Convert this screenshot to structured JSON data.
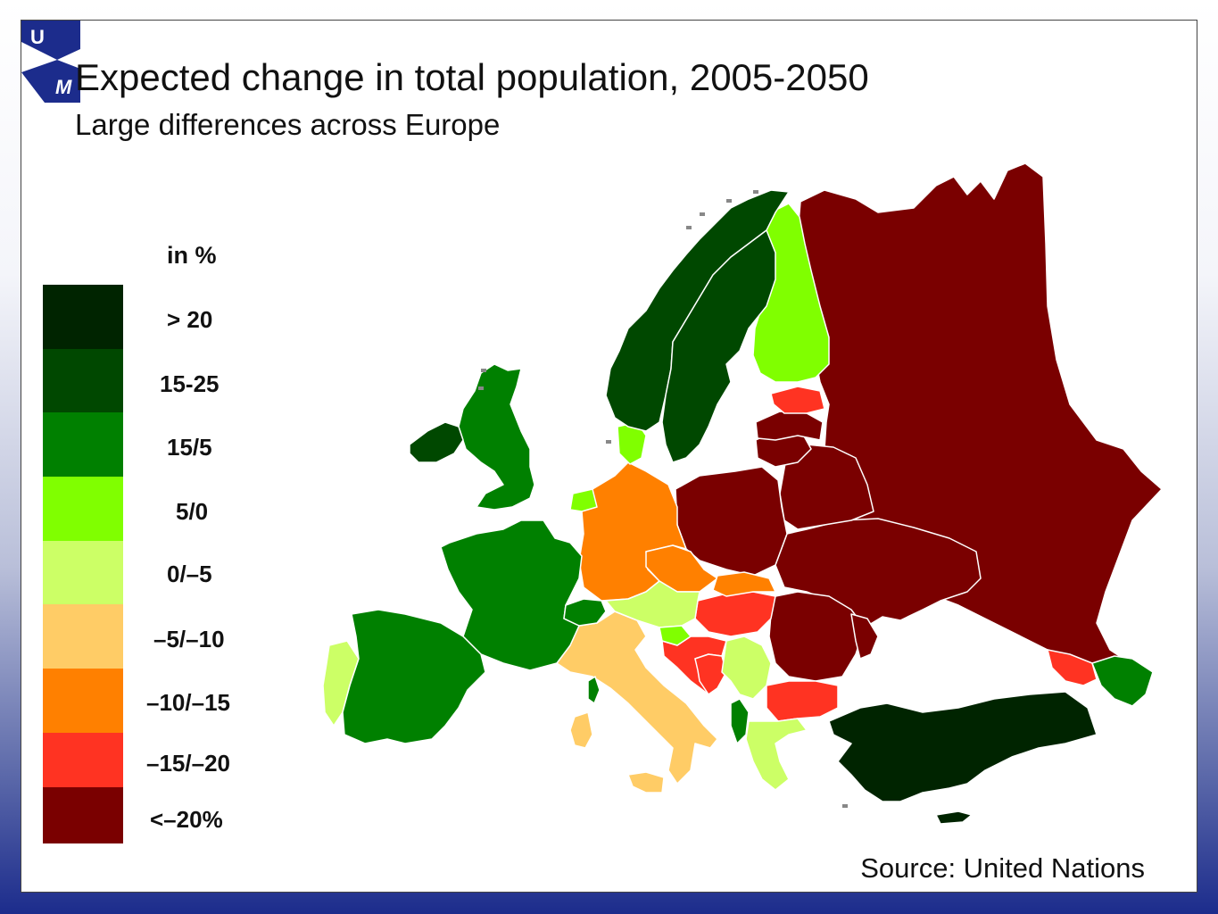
{
  "slide": {
    "title": "Expected change in total population, 2005-2050",
    "subtitle": "Large differences across Europe",
    "source": "Source: United Nations",
    "logo_letters": [
      "U",
      "M"
    ]
  },
  "legend": {
    "title": "in %",
    "classes": [
      {
        "label": "> 20",
        "color": "#002400"
      },
      {
        "label": "15-25",
        "color": "#004800"
      },
      {
        "label": "15/5",
        "color": "#008000"
      },
      {
        "label": "5/0",
        "color": "#80ff00"
      },
      {
        "label": "0/–5",
        "color": "#ccff66"
      },
      {
        "label": "–5/–10",
        "color": "#ffcc66"
      },
      {
        "label": "–10/–15",
        "color": "#ff8000"
      },
      {
        "label": "–15/–20",
        "color": "#ff3322"
      },
      {
        "label": "<–20%",
        "color": "#7a0000"
      }
    ]
  },
  "map_data": {
    "regions": [
      {
        "name": "Russia",
        "class": "<–20%"
      },
      {
        "name": "Ukraine",
        "class": "<–20%"
      },
      {
        "name": "Belarus",
        "class": "<–20%"
      },
      {
        "name": "Poland",
        "class": "<–20%"
      },
      {
        "name": "Lithuania",
        "class": "<–20%"
      },
      {
        "name": "Latvia",
        "class": "<–20%"
      },
      {
        "name": "Romania",
        "class": "<–20%"
      },
      {
        "name": "Moldova",
        "class": "<–20%"
      },
      {
        "name": "Estonia",
        "class": "–15/–20"
      },
      {
        "name": "Hungary",
        "class": "–15/–20"
      },
      {
        "name": "Croatia",
        "class": "–15/–20"
      },
      {
        "name": "Bosnia",
        "class": "–15/–20"
      },
      {
        "name": "Bulgaria",
        "class": "–15/–20"
      },
      {
        "name": "Georgia",
        "class": "–15/–20"
      },
      {
        "name": "Germany",
        "class": "–10/–15"
      },
      {
        "name": "Czech Republic",
        "class": "–10/–15"
      },
      {
        "name": "Slovakia",
        "class": "–10/–15"
      },
      {
        "name": "Italy",
        "class": "–5/–10"
      },
      {
        "name": "Sardinia",
        "class": "–5/–10"
      },
      {
        "name": "Sicily",
        "class": "–5/–10"
      },
      {
        "name": "Portugal",
        "class": "0/–5"
      },
      {
        "name": "Austria",
        "class": "0/–5"
      },
      {
        "name": "Serbia",
        "class": "0/–5"
      },
      {
        "name": "Greece",
        "class": "0/–5"
      },
      {
        "name": "Finland",
        "class": "5/0"
      },
      {
        "name": "Denmark",
        "class": "5/0"
      },
      {
        "name": "Netherlands",
        "class": "5/0"
      },
      {
        "name": "Slovenia",
        "class": "5/0"
      },
      {
        "name": "United Kingdom",
        "class": "15/5"
      },
      {
        "name": "France",
        "class": "15/5"
      },
      {
        "name": "Spain",
        "class": "15/5"
      },
      {
        "name": "Switzerland",
        "class": "15/5"
      },
      {
        "name": "Albania",
        "class": "15/5"
      },
      {
        "name": "Corsica",
        "class": "15/5"
      },
      {
        "name": "Azerbaijan",
        "class": "15/5"
      },
      {
        "name": "Norway",
        "class": "15-25"
      },
      {
        "name": "Sweden",
        "class": "15-25"
      },
      {
        "name": "Ireland",
        "class": "15-25"
      },
      {
        "name": "Turkey",
        "class": "> 20"
      },
      {
        "name": "Cyprus",
        "class": "> 20"
      }
    ]
  }
}
